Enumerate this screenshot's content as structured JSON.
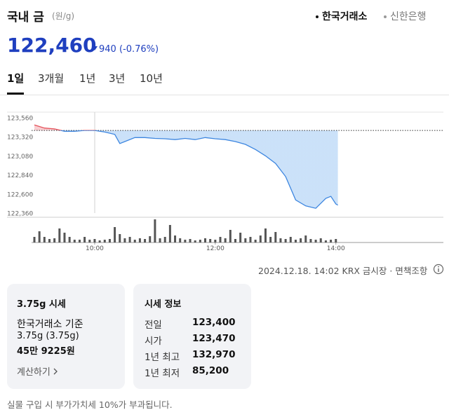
{
  "header": {
    "title": "국내 금",
    "unit": "(원/g)",
    "sources": [
      "한국거래소",
      "신한은행"
    ],
    "price": "122,460",
    "change": "940 (-0.76%)"
  },
  "tabs": [
    "1일",
    "3개월",
    "1년",
    "3년",
    "10년"
  ],
  "chart_data": [
    {
      "type": "line",
      "x": [
        540,
        550,
        560,
        570,
        580,
        590,
        600,
        610,
        620,
        625,
        630,
        640,
        650,
        660,
        670,
        680,
        690,
        700,
        710,
        720,
        730,
        740,
        750,
        760,
        770,
        780,
        790,
        800,
        810,
        820,
        830,
        835,
        840,
        842
      ],
      "values": [
        123470,
        123430,
        123420,
        123390,
        123390,
        123400,
        123400,
        123380,
        123350,
        123235,
        123260,
        123310,
        123310,
        123300,
        123295,
        123285,
        123300,
        123285,
        123310,
        123295,
        123285,
        123260,
        123225,
        123160,
        123080,
        122985,
        122820,
        122525,
        122450,
        122420,
        122545,
        122570,
        122475,
        122460
      ],
      "reference": 123400,
      "color_above": "#e5535c",
      "color_below": "#3d86e0",
      "fill_above": "#f7c9cc",
      "fill_below": "#c5def8",
      "xlim": [
        540,
        947
      ],
      "ylim": [
        122360,
        123560
      ],
      "yticks": [
        {
          "value": 122360,
          "label": "122,360"
        },
        {
          "value": 122600,
          "label": "122,600"
        },
        {
          "value": 122840,
          "label": "122,840"
        },
        {
          "value": 123080,
          "label": "123,080"
        },
        {
          "value": 123320,
          "label": "123,320"
        },
        {
          "value": 123560,
          "label": "123,560"
        }
      ]
    },
    {
      "type": "bar",
      "x": [
        540,
        545,
        550,
        555,
        560,
        565,
        570,
        575,
        580,
        585,
        590,
        595,
        600,
        605,
        610,
        615,
        620,
        625,
        630,
        635,
        640,
        645,
        650,
        655,
        660,
        665,
        670,
        675,
        680,
        685,
        690,
        695,
        700,
        705,
        710,
        715,
        720,
        725,
        730,
        735,
        740,
        745,
        750,
        755,
        760,
        765,
        770,
        775,
        780,
        785,
        790,
        795,
        800,
        805,
        810,
        815,
        820,
        825,
        830,
        835,
        840
      ],
      "values": [
        8,
        16,
        8,
        5,
        6,
        20,
        14,
        8,
        4,
        4,
        8,
        4,
        5,
        3,
        4,
        5,
        22,
        12,
        6,
        8,
        4,
        6,
        5,
        9,
        33,
        6,
        8,
        25,
        10,
        6,
        4,
        5,
        3,
        4,
        6,
        5,
        4,
        8,
        6,
        18,
        5,
        14,
        6,
        8,
        4,
        10,
        20,
        8,
        15,
        6,
        5,
        8,
        4,
        6,
        10,
        5,
        4,
        6,
        3,
        4,
        5
      ],
      "color": "#555555",
      "xlim": [
        540,
        947
      ],
      "ylim": [
        0,
        35
      ],
      "xticks": [
        {
          "value": 600,
          "label": "10:00"
        },
        {
          "value": 720,
          "label": "12:00"
        },
        {
          "value": 840,
          "label": "14:00"
        }
      ]
    }
  ],
  "meta": {
    "timestamp": "2024.12.18. 14:02 KRX 금시장",
    "disclaimer": "면책조항"
  },
  "card_price": {
    "title": "3.75g 시세",
    "basis": "한국거래소 기준",
    "weight": "3.75g (3.75g)",
    "amount": "45만 9225원",
    "action": "계산하기"
  },
  "card_info": {
    "title": "시세 정보",
    "rows": [
      [
        "전일",
        "123,400"
      ],
      [
        "시가",
        "123,470"
      ],
      [
        "1년 최고",
        "132,970"
      ],
      [
        "1년 최저",
        "85,200"
      ]
    ]
  },
  "footer": "실물 구입 시 부가가치세 10%가 부과됩니다."
}
